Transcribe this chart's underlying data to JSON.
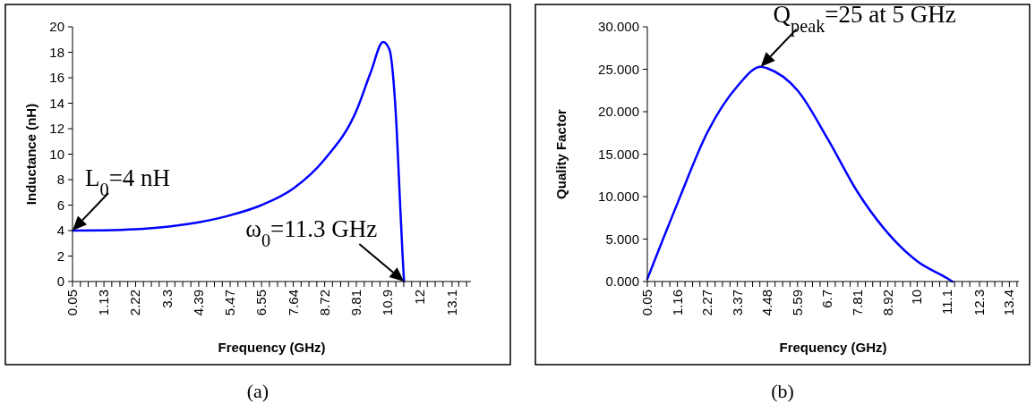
{
  "chart_data": [
    {
      "type": "line",
      "xlabel": "Frequency (GHz)",
      "ylabel": "Inductance (nH)",
      "x": [
        0.05,
        1.13,
        2.22,
        3.3,
        4.39,
        5.47,
        6.55,
        7.64,
        8.72,
        9.81,
        10.3,
        10.73,
        10.95,
        11.1,
        11.2,
        11.3,
        11.4,
        11.45
      ],
      "series": [
        {
          "color": "#0000ff",
          "values": [
            4.0,
            4.02,
            4.1,
            4.3,
            4.65,
            5.2,
            6.0,
            7.3,
            9.6,
            13.4,
            16.4,
            18.8,
            18.2,
            15.4,
            11.8,
            6.8,
            2.0,
            0
          ]
        }
      ],
      "xlim": [
        0.05,
        13.75
      ],
      "ylim": [
        0,
        20
      ],
      "yticks": [
        0,
        2,
        4,
        6,
        8,
        10,
        12,
        14,
        16,
        18,
        20
      ],
      "xticks": [
        0.05,
        {
          "value": 0.32,
          "label": null
        },
        {
          "value": 0.59,
          "label": null
        },
        {
          "value": 0.86,
          "label": null
        },
        1.13,
        {
          "value": 1.4,
          "label": null
        },
        {
          "value": 1.68,
          "label": null
        },
        {
          "value": 1.95,
          "label": null
        },
        2.22,
        {
          "value": 2.49,
          "label": null
        },
        {
          "value": 2.76,
          "label": null
        },
        {
          "value": 3.03,
          "label": null
        },
        3.3,
        {
          "value": 3.57,
          "label": null
        },
        {
          "value": 3.84,
          "label": null
        },
        {
          "value": 4.12,
          "label": null
        },
        4.39,
        {
          "value": 4.66,
          "label": null
        },
        {
          "value": 4.93,
          "label": null
        },
        {
          "value": 5.2,
          "label": null
        },
        5.47,
        {
          "value": 5.74,
          "label": null
        },
        {
          "value": 6.01,
          "label": null
        },
        {
          "value": 6.28,
          "label": null
        },
        6.55,
        {
          "value": 6.82,
          "label": null
        },
        {
          "value": 7.1,
          "label": null
        },
        {
          "value": 7.37,
          "label": null
        },
        7.64,
        {
          "value": 7.91,
          "label": null
        },
        {
          "value": 8.18,
          "label": null
        },
        {
          "value": 8.45,
          "label": null
        },
        8.72,
        {
          "value": 8.99,
          "label": null
        },
        {
          "value": 9.27,
          "label": null
        },
        {
          "value": 9.54,
          "label": null
        },
        9.81,
        {
          "value": 10.08,
          "label": null
        },
        {
          "value": 10.35,
          "label": null
        },
        {
          "value": 10.62,
          "label": null
        },
        10.9,
        {
          "value": 11.17,
          "label": null
        },
        {
          "value": 11.44,
          "label": null
        },
        {
          "value": 11.71,
          "label": null
        },
        12,
        {
          "value": 12.25,
          "label": null
        },
        {
          "value": 12.52,
          "label": null
        },
        {
          "value": 12.79,
          "label": null
        },
        13.1,
        {
          "value": 13.33,
          "label": null
        },
        {
          "value": 13.6,
          "label": null
        }
      ],
      "annotations": [
        {
          "text": "L$_{0}$=4 nH",
          "x": 0.05,
          "y": 4
        },
        {
          "text": "ω$_{0}$=11.3 GHz",
          "x": 11.45,
          "y": 0
        },
        "(a)"
      ]
    },
    {
      "type": "line",
      "xlabel": "Frequency (GHz)",
      "ylabel": "Quality Factor",
      "x": [
        0.05,
        1.16,
        2.27,
        3.37,
        4.23,
        4.48,
        5.59,
        6.7,
        7.81,
        8.92,
        10,
        11.1,
        11.3
      ],
      "series": [
        {
          "color": "#0000ff",
          "values": [
            0.3,
            9.2,
            17.6,
            23.0,
            25.3,
            25.1,
            22.5,
            16.8,
            10.5,
            5.7,
            2.4,
            0.4,
            0
          ]
        }
      ],
      "xlim": [
        0.05,
        13.75
      ],
      "ylim": [
        0,
        30
      ],
      "yticks": [
        {
          "value": 0,
          "label": "0.000"
        },
        {
          "value": 5,
          "label": "5.000"
        },
        {
          "value": 10,
          "label": "10.000"
        },
        {
          "value": 15,
          "label": "15.000"
        },
        {
          "value": 20,
          "label": "20.000"
        },
        {
          "value": 25,
          "label": "25.000"
        },
        {
          "value": 30,
          "label": "30.000"
        }
      ],
      "xticks": [
        0.05,
        {
          "value": 0.33,
          "label": null
        },
        {
          "value": 0.6,
          "label": null
        },
        {
          "value": 0.88,
          "label": null
        },
        1.16,
        {
          "value": 1.44,
          "label": null
        },
        {
          "value": 1.72,
          "label": null
        },
        {
          "value": 1.99,
          "label": null
        },
        2.27,
        {
          "value": 2.55,
          "label": null
        },
        {
          "value": 2.82,
          "label": null
        },
        {
          "value": 3.1,
          "label": null
        },
        3.37,
        {
          "value": 3.65,
          "label": null
        },
        {
          "value": 3.93,
          "label": null
        },
        {
          "value": 4.2,
          "label": null
        },
        4.48,
        {
          "value": 4.76,
          "label": null
        },
        {
          "value": 5.04,
          "label": null
        },
        {
          "value": 5.31,
          "label": null
        },
        5.59,
        {
          "value": 5.87,
          "label": null
        },
        {
          "value": 6.14,
          "label": null
        },
        {
          "value": 6.42,
          "label": null
        },
        6.7,
        {
          "value": 6.98,
          "label": null
        },
        {
          "value": 7.26,
          "label": null
        },
        {
          "value": 7.53,
          "label": null
        },
        7.81,
        {
          "value": 8.09,
          "label": null
        },
        {
          "value": 8.36,
          "label": null
        },
        {
          "value": 8.64,
          "label": null
        },
        8.92,
        {
          "value": 9.19,
          "label": null
        },
        {
          "value": 9.47,
          "label": null
        },
        {
          "value": 9.75,
          "label": null
        },
        10,
        {
          "value": 10.28,
          "label": null
        },
        {
          "value": 10.56,
          "label": null
        },
        {
          "value": 10.83,
          "label": null
        },
        11.1,
        {
          "value": 11.38,
          "label": null
        },
        {
          "value": 11.66,
          "label": null
        },
        {
          "value": 11.94,
          "label": null
        },
        12.3,
        {
          "value": 12.58,
          "label": null
        },
        {
          "value": 12.86,
          "label": null
        },
        {
          "value": 13.13,
          "label": null
        },
        13.4,
        {
          "value": 13.68,
          "label": null
        }
      ],
      "annotations": [
        {
          "text": "Q$_{peak}$=25 at 5 GHz",
          "x": 4.23,
          "y": 25.3
        },
        "(b)"
      ]
    }
  ]
}
